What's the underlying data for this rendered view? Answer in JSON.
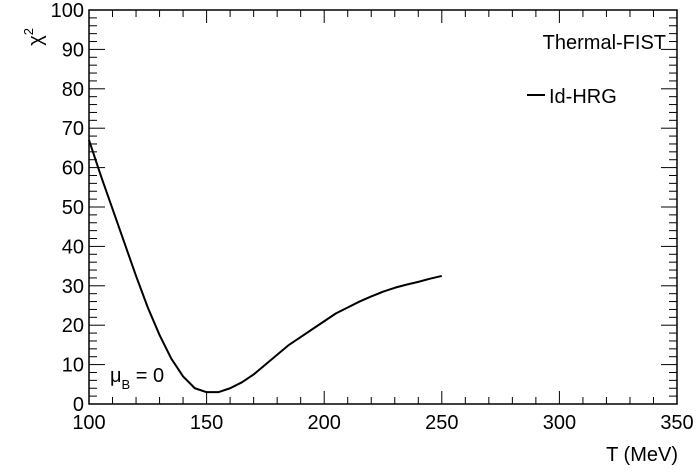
{
  "chart_data": {
    "type": "line",
    "title": "",
    "xlabel": "T (MeV)",
    "ylabel": {
      "base": "χ",
      "sup": "2"
    },
    "xlim": [
      100,
      350
    ],
    "ylim": [
      0,
      100
    ],
    "xticks": [
      100,
      150,
      200,
      250,
      300,
      350
    ],
    "yticks": [
      0,
      10,
      20,
      30,
      40,
      50,
      60,
      70,
      80,
      90,
      100
    ],
    "grid": false,
    "legend": {
      "placement": "top-right",
      "header": "Thermal-FIST",
      "entries": [
        "Id-HRG"
      ]
    },
    "annotation": {
      "base": "μ",
      "sub": "B",
      "rest": " = 0"
    },
    "series": [
      {
        "name": "Id-HRG",
        "color": "#000000",
        "x": [
          100,
          105,
          110,
          115,
          120,
          125,
          130,
          135,
          140,
          145,
          150,
          155,
          160,
          165,
          170,
          175,
          180,
          185,
          190,
          195,
          200,
          205,
          210,
          215,
          220,
          225,
          230,
          235,
          240,
          245,
          250
        ],
        "y": [
          67,
          58,
          49.5,
          41,
          32.5,
          24.5,
          17.5,
          11.5,
          7,
          4,
          3,
          3,
          4,
          5.5,
          7.5,
          10,
          12.5,
          15,
          17,
          19,
          21,
          23,
          24.5,
          26,
          27.3,
          28.5,
          29.5,
          30.3,
          31,
          31.8,
          32.5
        ]
      }
    ]
  }
}
